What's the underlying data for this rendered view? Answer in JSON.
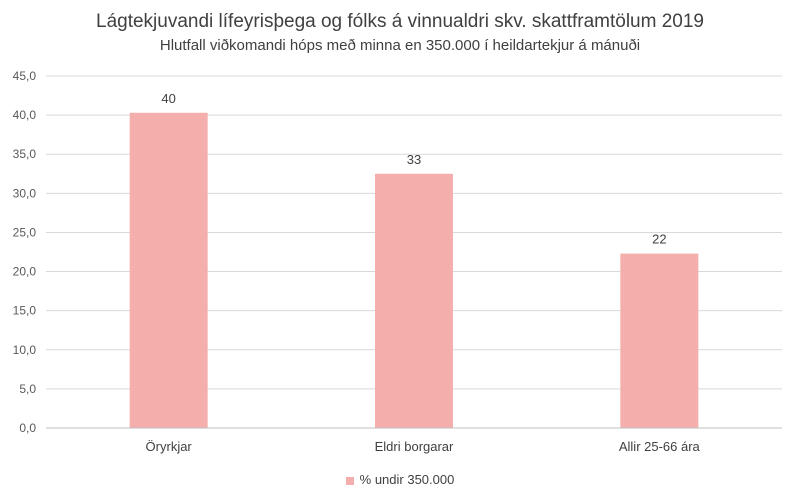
{
  "chart_data": {
    "type": "bar",
    "title": "Lágtekjuvandi lífeyrisþega og fólks á vinnualdri skv. skattframtölum 2019",
    "subtitle": "Hlutfall viðkomandi hóps með minna en 350.000 í heildartekjur á mánuði",
    "categories": [
      "Öryrkjar",
      "Eldri borgarar",
      "Allir 25-66 ára"
    ],
    "series": [
      {
        "name": "% undir 350.000",
        "values": [
          40.3,
          32.5,
          22.3
        ],
        "data_labels": [
          "40",
          "33",
          "22"
        ],
        "color": "#f4aeab"
      }
    ],
    "ylim": [
      0,
      45
    ],
    "yticks": [
      "0,0",
      "5,0",
      "10,0",
      "15,0",
      "20,0",
      "25,0",
      "30,0",
      "35,0",
      "40,0",
      "45,0"
    ],
    "grid": true,
    "legend": "bottom"
  }
}
